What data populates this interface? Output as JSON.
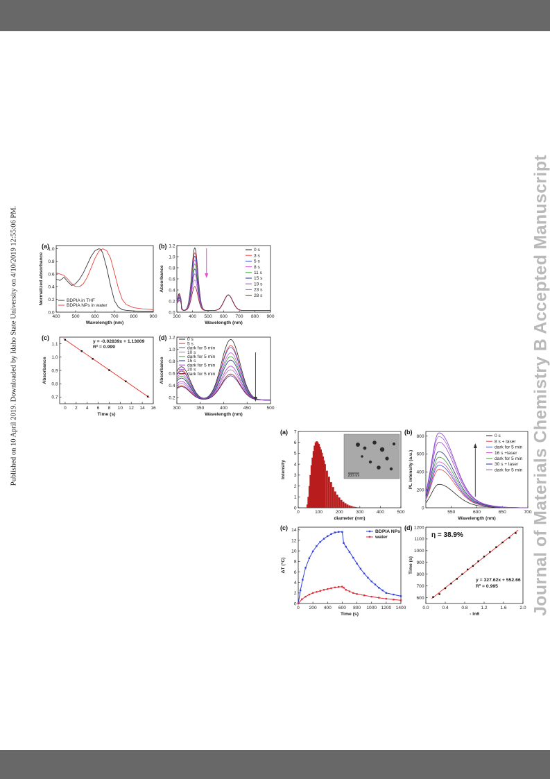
{
  "header_bar_color": "#686868",
  "side_note": "Published on 10 April 2019. Downloaded by Idaho State University on 4/10/2019 12:55:06 PM.",
  "watermark": "Journal of Materials Chemistry B Accepted Manuscript",
  "chart_data": [
    {
      "panel": "(a)",
      "type": "line",
      "xlabel": "Wavelength (nm)",
      "ylabel": "Normalized absorbance",
      "xlim": [
        400,
        900
      ],
      "ylim": [
        0.0,
        1.05
      ],
      "xticks": [
        "400",
        "500",
        "600",
        "700",
        "800",
        "900"
      ],
      "yticks": [
        "0.0",
        "0.2",
        "0.4",
        "0.6",
        "0.8",
        "1.0"
      ],
      "legend_position": "bottom-left",
      "series": [
        {
          "name": "BDPIA in THF",
          "color": "#333333",
          "x": [
            400,
            420,
            440,
            460,
            480,
            500,
            520,
            540,
            560,
            580,
            600,
            620,
            630,
            640,
            660,
            680,
            700,
            720,
            740,
            760,
            800,
            850,
            900
          ],
          "y": [
            0.52,
            0.5,
            0.55,
            0.48,
            0.42,
            0.45,
            0.52,
            0.62,
            0.75,
            0.88,
            0.97,
            1.0,
            0.99,
            0.93,
            0.7,
            0.42,
            0.18,
            0.08,
            0.04,
            0.03,
            0.02,
            0.01,
            0.01
          ]
        },
        {
          "name": "BDPIA NPs in water",
          "color": "#e8413a",
          "x": [
            400,
            420,
            440,
            460,
            480,
            500,
            520,
            540,
            560,
            580,
            600,
            620,
            640,
            660,
            680,
            700,
            720,
            740,
            760,
            800,
            850,
            900
          ],
          "y": [
            0.62,
            0.6,
            0.58,
            0.52,
            0.45,
            0.4,
            0.4,
            0.45,
            0.55,
            0.7,
            0.85,
            0.96,
            1.0,
            0.97,
            0.85,
            0.62,
            0.38,
            0.2,
            0.12,
            0.07,
            0.05,
            0.04
          ]
        }
      ]
    },
    {
      "panel": "(b)",
      "type": "line",
      "xlabel": "Wavelength (nm)",
      "ylabel": "Absorbance",
      "xlim": [
        300,
        900
      ],
      "ylim": [
        0.0,
        1.2
      ],
      "xticks": [
        "300",
        "400",
        "500",
        "600",
        "700",
        "800",
        "900"
      ],
      "yticks": [
        "0.0",
        "0.2",
        "0.4",
        "0.6",
        "0.8",
        "1.0",
        "1.2"
      ],
      "legend_position": "top-right",
      "peak_values": [
        1.13,
        1.04,
        0.98,
        0.91,
        0.84,
        0.75,
        0.66,
        0.55,
        0.43
      ],
      "series": [
        {
          "name": "0 s",
          "color": "#222222"
        },
        {
          "name": "3 s",
          "color": "#e8413a"
        },
        {
          "name": "5 s",
          "color": "#2f4fd6"
        },
        {
          "name": "8 s",
          "color": "#d64fd6"
        },
        {
          "name": "11 s",
          "color": "#3f9f3f"
        },
        {
          "name": "15 s",
          "color": "#1c2a8c"
        },
        {
          "name": "19 s",
          "color": "#9f3fbf"
        },
        {
          "name": "23 s",
          "color": "#b06ad8"
        },
        {
          "name": "28 s",
          "color": "#8b1a1a"
        }
      ]
    },
    {
      "panel": "(c)",
      "type": "scatter",
      "xlabel": "Time (s)",
      "ylabel": "Absorbance",
      "xlim": [
        -1,
        16
      ],
      "ylim": [
        0.65,
        1.15
      ],
      "xticks": [
        "0",
        "2",
        "4",
        "6",
        "8",
        "10",
        "12",
        "14",
        "16"
      ],
      "yticks": [
        "0.7",
        "0.8",
        "0.9",
        "1.0",
        "1.1"
      ],
      "fit_equation": "y = -0.02839x + 1.13009",
      "fit_r2": "R² = 0.999",
      "fit": {
        "slope": -0.02839,
        "intercept": 1.13009,
        "color": "#e8413a"
      },
      "x": [
        0,
        3,
        5,
        8,
        11,
        15
      ],
      "y": [
        1.13,
        1.045,
        0.987,
        0.902,
        0.818,
        0.704
      ]
    },
    {
      "panel": "(d)",
      "type": "line",
      "xlabel": "Wavelength (nm)",
      "ylabel": "Absorbance",
      "xlim": [
        300,
        500
      ],
      "ylim": [
        0.1,
        1.2
      ],
      "xticks": [
        "300",
        "350",
        "400",
        "450",
        "500"
      ],
      "yticks": [
        "0.2",
        "0.4",
        "0.6",
        "0.8",
        "1.0",
        "1.2"
      ],
      "legend_position": "top-left",
      "peak_values": [
        1.0,
        0.9,
        0.87,
        0.78,
        0.72,
        0.66,
        0.56,
        0.5,
        0.43,
        0.4
      ],
      "series": [
        {
          "name": "0 s",
          "color": "#222222"
        },
        {
          "name": "5 s",
          "color": "#e8413a"
        },
        {
          "name": "dark for 5 min",
          "color": "#2f4fd6"
        },
        {
          "name": "10 s",
          "color": "#d64fd6"
        },
        {
          "name": "dark for 5 min",
          "color": "#3f9f3f"
        },
        {
          "name": "15 s",
          "color": "#1c2a8c"
        },
        {
          "name": "dark for 5 min",
          "color": "#9f3fbf"
        },
        {
          "name": "20 s",
          "color": "#b06ad8"
        },
        {
          "name": "dark for 5 min",
          "color": "#8b1a1a"
        },
        {
          "name": "",
          "color": "#5a2a9a"
        }
      ]
    },
    {
      "panel": "(a)",
      "type": "bar",
      "xlabel": "diameter (nm)",
      "ylabel": "Intensity",
      "xlim": [
        0,
        500
      ],
      "ylim": [
        0,
        7
      ],
      "xticks": [
        "0",
        "100",
        "200",
        "300",
        "400",
        "500"
      ],
      "yticks": [
        "0",
        "1",
        "2",
        "3",
        "4",
        "5",
        "6",
        "7"
      ],
      "inset_scale_bar": "200 nm",
      "x": [
        45,
        50,
        55,
        60,
        65,
        70,
        75,
        80,
        85,
        90,
        95,
        100,
        105,
        110,
        115,
        120,
        125,
        130,
        140,
        150,
        160,
        170,
        180,
        190,
        200,
        210,
        220,
        230,
        240,
        250,
        260,
        270,
        280,
        290
      ],
      "values": [
        0.3,
        1.0,
        2.0,
        3.0,
        3.9,
        4.6,
        5.2,
        5.7,
        6.0,
        6.1,
        6.0,
        5.85,
        5.6,
        5.35,
        5.05,
        4.7,
        4.35,
        4.0,
        3.4,
        2.85,
        2.35,
        1.9,
        1.5,
        1.2,
        0.95,
        0.72,
        0.55,
        0.42,
        0.3,
        0.22,
        0.16,
        0.1,
        0.07,
        0.04
      ]
    },
    {
      "panel": "(b)",
      "type": "line",
      "xlabel": "Wavelength (nm)",
      "ylabel": "PL intensity (a.u.)",
      "xlim": [
        500,
        700
      ],
      "ylim": [
        0,
        850
      ],
      "xticks": [
        "550",
        "600",
        "650",
        "700"
      ],
      "yticks": [
        "0",
        "200",
        "400",
        "600",
        "800"
      ],
      "legend_position": "top-right",
      "peak_values": [
        250,
        410,
        455,
        490,
        540,
        600,
        700,
        760,
        800
      ],
      "series": [
        {
          "name": "0 s",
          "color": "#222222"
        },
        {
          "name": "8 s + laser",
          "color": "#e8413a"
        },
        {
          "name": "dark for 5 min",
          "color": "#2f4fd6"
        },
        {
          "name": "16 s +laser",
          "color": "#d64fd6"
        },
        {
          "name": "dark for 5 min",
          "color": "#3f9f3f"
        },
        {
          "name": "30 s + laser",
          "color": "#1c2a8c"
        },
        {
          "name": "dark for 5 min",
          "color": "#9f3fbf"
        },
        {
          "name": "",
          "color": "#b06ad8"
        },
        {
          "name": "",
          "color": "#7a3fd0"
        }
      ]
    },
    {
      "panel": "(c)",
      "type": "line",
      "xlabel": "Time (s)",
      "ylabel": "ΔT (°C)",
      "xlim": [
        0,
        1400
      ],
      "ylim": [
        0,
        14.5
      ],
      "xticks": [
        "0",
        "200",
        "400",
        "600",
        "800",
        "1000",
        "1200",
        "1400"
      ],
      "yticks": [
        "0",
        "2",
        "4",
        "6",
        "8",
        "10",
        "12",
        "14"
      ],
      "legend_position": "top-right",
      "series": [
        {
          "name": "BDPIA NPs",
          "color": "#2f3fe0",
          "x": [
            0,
            30,
            60,
            100,
            150,
            200,
            250,
            300,
            350,
            400,
            450,
            500,
            550,
            600,
            620,
            650,
            700,
            750,
            800,
            850,
            900,
            950,
            1000,
            1050,
            1100,
            1150,
            1200,
            1300,
            1400
          ],
          "y": [
            0,
            2.5,
            4.5,
            6.8,
            8.6,
            9.9,
            10.9,
            11.7,
            12.3,
            12.8,
            13.2,
            13.5,
            13.6,
            13.6,
            11.5,
            10.8,
            9.8,
            8.7,
            7.6,
            6.6,
            5.7,
            4.9,
            4.2,
            3.6,
            3.0,
            2.5,
            2.0,
            1.7,
            1.4
          ]
        },
        {
          "name": "water",
          "color": "#e0303a",
          "x": [
            0,
            50,
            100,
            150,
            200,
            250,
            300,
            350,
            400,
            450,
            500,
            550,
            600,
            620,
            650,
            700,
            750,
            800,
            900,
            1000,
            1100,
            1200,
            1300,
            1400
          ],
          "y": [
            0,
            0.8,
            1.3,
            1.7,
            2.0,
            2.2,
            2.4,
            2.6,
            2.75,
            2.9,
            3.05,
            3.15,
            3.2,
            3.0,
            2.6,
            2.3,
            2.0,
            1.8,
            1.55,
            1.3,
            1.1,
            0.9,
            0.75,
            0.6
          ]
        }
      ]
    },
    {
      "panel": "(d)",
      "type": "scatter",
      "xlabel": "- lnθ",
      "ylabel": "Time (s)",
      "xlim": [
        0.0,
        2.0
      ],
      "ylim": [
        550,
        1200
      ],
      "xticks": [
        "0.0",
        "0.4",
        "0.8",
        "1.2",
        "1.6",
        "2.0"
      ],
      "yticks": [
        "600",
        "700",
        "800",
        "900",
        "1000",
        "1100",
        "1200"
      ],
      "annotation": "η = 38.9%",
      "fit_equation": "y = 327.62x + 552.66",
      "fit_r2": "R² = 0.995",
      "fit": {
        "slope": 327.62,
        "intercept": 552.66,
        "color": "#e8413a"
      },
      "x": [
        0.15,
        0.28,
        0.4,
        0.52,
        0.64,
        0.75,
        0.86,
        0.97,
        1.08,
        1.2,
        1.32,
        1.45,
        1.58,
        1.72,
        1.85
      ],
      "y": [
        605,
        630,
        680,
        720,
        760,
        800,
        840,
        870,
        910,
        950,
        990,
        1030,
        1070,
        1110,
        1150
      ]
    }
  ]
}
